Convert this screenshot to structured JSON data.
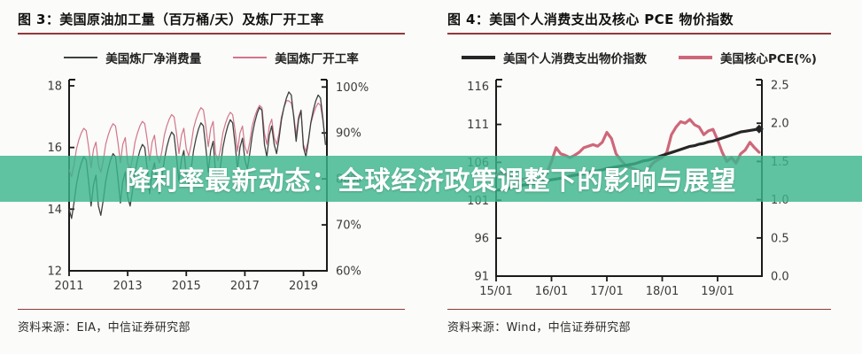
{
  "banner": {
    "text": "降利率最新动态：全球经济政策调整下的影响与展望"
  },
  "colors": {
    "banner_bg": "rgba(60,180,140,0.82)",
    "banner_text": "#ffffff",
    "rule_red": "#8f3a3a",
    "axis": "#1a1a1a"
  },
  "figures": [
    {
      "title": "图 3：美国原油加工量（百万桶/天）及炼厂开工率",
      "source": "资料来源：EIA，中信证券研究部"
    },
    {
      "title": "图 4：美国个人消费支出及核心 PCE 物价指数",
      "source": "资料来源：Wind，中信证券研究部"
    }
  ],
  "chart_data": [
    {
      "type": "line",
      "title": "美国原油加工量（百万桶/天）及炼厂开工率",
      "legend_position": "top",
      "grid": false,
      "x_start": 2011.0,
      "x_step_years": 0.0833333,
      "x_axis": {
        "range": [
          2011,
          2019.8
        ],
        "tick_values": [
          2011,
          2013,
          2015,
          2017,
          2019
        ],
        "tick_labels": [
          "2011",
          "2013",
          "2015",
          "2017",
          "2019"
        ]
      },
      "left_axis": {
        "range": [
          12,
          18.2
        ],
        "tick_values": [
          12,
          14,
          16,
          18
        ],
        "tick_labels": [
          "12",
          "14",
          "16",
          "18"
        ]
      },
      "right_axis": {
        "range": [
          60,
          101.6
        ],
        "tick_values": [
          60,
          70,
          80,
          90,
          100
        ],
        "tick_labels": [
          "60%",
          "70%",
          "80%",
          "90%",
          "100%"
        ]
      },
      "series": [
        {
          "name": "美国炼厂净消费量",
          "axis": "left",
          "color": "#3d4240",
          "width": 1.3,
          "end_marker": false,
          "values": [
            14.0,
            13.7,
            14.2,
            14.8,
            15.2,
            15.5,
            15.7,
            15.6,
            14.9,
            14.1,
            14.8,
            15.1,
            14.1,
            13.8,
            14.3,
            14.9,
            15.3,
            15.6,
            15.8,
            15.7,
            15.0,
            14.2,
            14.9,
            15.2,
            14.4,
            14.1,
            14.6,
            15.2,
            15.6,
            15.9,
            16.1,
            16.0,
            15.3,
            14.5,
            15.2,
            15.5,
            14.8,
            14.5,
            15.0,
            15.6,
            16.0,
            16.3,
            16.5,
            16.4,
            15.7,
            14.9,
            15.6,
            15.9,
            15.1,
            14.8,
            15.3,
            15.9,
            16.3,
            16.6,
            16.8,
            16.7,
            16.0,
            15.2,
            15.9,
            16.2,
            15.2,
            14.9,
            15.4,
            16.0,
            16.4,
            16.7,
            16.9,
            16.8,
            16.1,
            15.3,
            16.0,
            16.3,
            15.6,
            15.3,
            15.8,
            16.4,
            16.8,
            17.1,
            17.3,
            17.2,
            16.1,
            15.7,
            16.4,
            16.7,
            16.1,
            15.8,
            16.3,
            16.9,
            17.3,
            17.6,
            17.8,
            17.7,
            17.0,
            16.2,
            16.9,
            17.2,
            16.0,
            15.7,
            16.2,
            16.8,
            17.2,
            17.5,
            17.7,
            17.6,
            16.9,
            16.1
          ]
        },
        {
          "name": "美国炼厂开工率",
          "axis": "right",
          "color": "#d2758b",
          "width": 1.2,
          "end_marker": false,
          "values": [
            82.0,
            80.5,
            83.0,
            86.5,
            88.5,
            90.0,
            91.0,
            90.5,
            87.0,
            82.5,
            86.5,
            88.0,
            83.0,
            81.5,
            84.0,
            87.5,
            89.5,
            91.0,
            92.0,
            91.5,
            88.0,
            83.5,
            87.5,
            89.0,
            83.5,
            82.0,
            84.5,
            88.0,
            90.0,
            91.5,
            92.5,
            92.0,
            88.5,
            84.0,
            88.0,
            89.5,
            85.0,
            83.5,
            86.0,
            89.5,
            91.5,
            93.0,
            94.0,
            93.5,
            90.0,
            85.5,
            89.5,
            91.0,
            86.5,
            85.0,
            87.5,
            91.0,
            93.0,
            94.5,
            95.5,
            95.0,
            91.5,
            87.0,
            91.0,
            92.5,
            85.5,
            84.0,
            86.5,
            90.0,
            92.0,
            93.5,
            94.5,
            94.0,
            90.5,
            86.0,
            90.0,
            91.5,
            87.0,
            85.5,
            88.0,
            91.5,
            93.5,
            95.0,
            96.0,
            95.5,
            90.0,
            87.5,
            91.5,
            93.0,
            89.0,
            87.5,
            90.0,
            93.5,
            95.5,
            97.0,
            97.0,
            96.5,
            94.0,
            89.5,
            93.5,
            95.0,
            87.5,
            86.0,
            88.5,
            92.0,
            94.0,
            95.5,
            96.5,
            96.0,
            92.5,
            88.0
          ]
        }
      ]
    },
    {
      "type": "line",
      "title": "美国个人消费支出及核心 PCE 物价指数",
      "legend_position": "top",
      "grid": false,
      "x_start": 2015.0,
      "x_step_years": 0.0833333,
      "x_axis": {
        "range": [
          2015,
          2019.8
        ],
        "tick_values": [
          2015,
          2016,
          2017,
          2018,
          2019
        ],
        "tick_labels": [
          "15/01",
          "16/01",
          "17/01",
          "18/01",
          "19/01"
        ]
      },
      "left_axis": {
        "range": [
          91,
          116.9
        ],
        "tick_values": [
          91,
          96,
          101,
          106,
          111,
          116
        ],
        "tick_labels": [
          "91",
          "96",
          "101",
          "106",
          "111",
          "116"
        ]
      },
      "right_axis": {
        "range": [
          0,
          2.57
        ],
        "tick_values": [
          0,
          0.5,
          1.0,
          1.5,
          2.0,
          2.5
        ],
        "tick_labels": [
          "0.0",
          "0.5",
          "1.0",
          "1.5",
          "2.0",
          "2.5"
        ]
      },
      "series": [
        {
          "name": "美国个人消费支出物价指数",
          "axis": "left",
          "color": "#262626",
          "width": 3.2,
          "end_marker": true,
          "values": [
            102.3,
            102.4,
            102.5,
            102.6,
            102.8,
            102.9,
            103.0,
            103.1,
            103.2,
            103.3,
            103.4,
            103.6,
            103.7,
            103.8,
            103.9,
            104.0,
            104.2,
            104.3,
            104.4,
            104.5,
            104.7,
            104.8,
            104.9,
            105.0,
            105.2,
            105.3,
            105.4,
            105.5,
            105.6,
            105.7,
            105.8,
            106.0,
            106.2,
            106.3,
            106.5,
            106.7,
            106.9,
            107.1,
            107.3,
            107.5,
            107.7,
            107.9,
            108.1,
            108.2,
            108.4,
            108.5,
            108.7,
            108.8,
            109.0,
            109.2,
            109.4,
            109.6,
            109.8,
            110.0,
            110.1,
            110.2,
            110.3,
            110.4
          ]
        },
        {
          "name": "美国核心PCE(%)",
          "axis": "right",
          "color": "#ce6779",
          "width": 3.2,
          "end_marker": false,
          "values": [
            1.32,
            1.35,
            1.33,
            1.3,
            1.28,
            1.25,
            1.27,
            1.25,
            1.28,
            1.26,
            1.3,
            1.35,
            1.5,
            1.68,
            1.6,
            1.58,
            1.55,
            1.58,
            1.62,
            1.68,
            1.7,
            1.72,
            1.7,
            1.75,
            1.88,
            1.8,
            1.6,
            1.52,
            1.45,
            1.42,
            1.4,
            1.38,
            1.35,
            1.4,
            1.48,
            1.52,
            1.55,
            1.62,
            1.85,
            1.95,
            2.02,
            2.0,
            2.05,
            1.98,
            1.95,
            1.85,
            1.9,
            1.92,
            1.78,
            1.62,
            1.5,
            1.55,
            1.48,
            1.6,
            1.65,
            1.75,
            1.68,
            1.62
          ]
        }
      ]
    }
  ]
}
